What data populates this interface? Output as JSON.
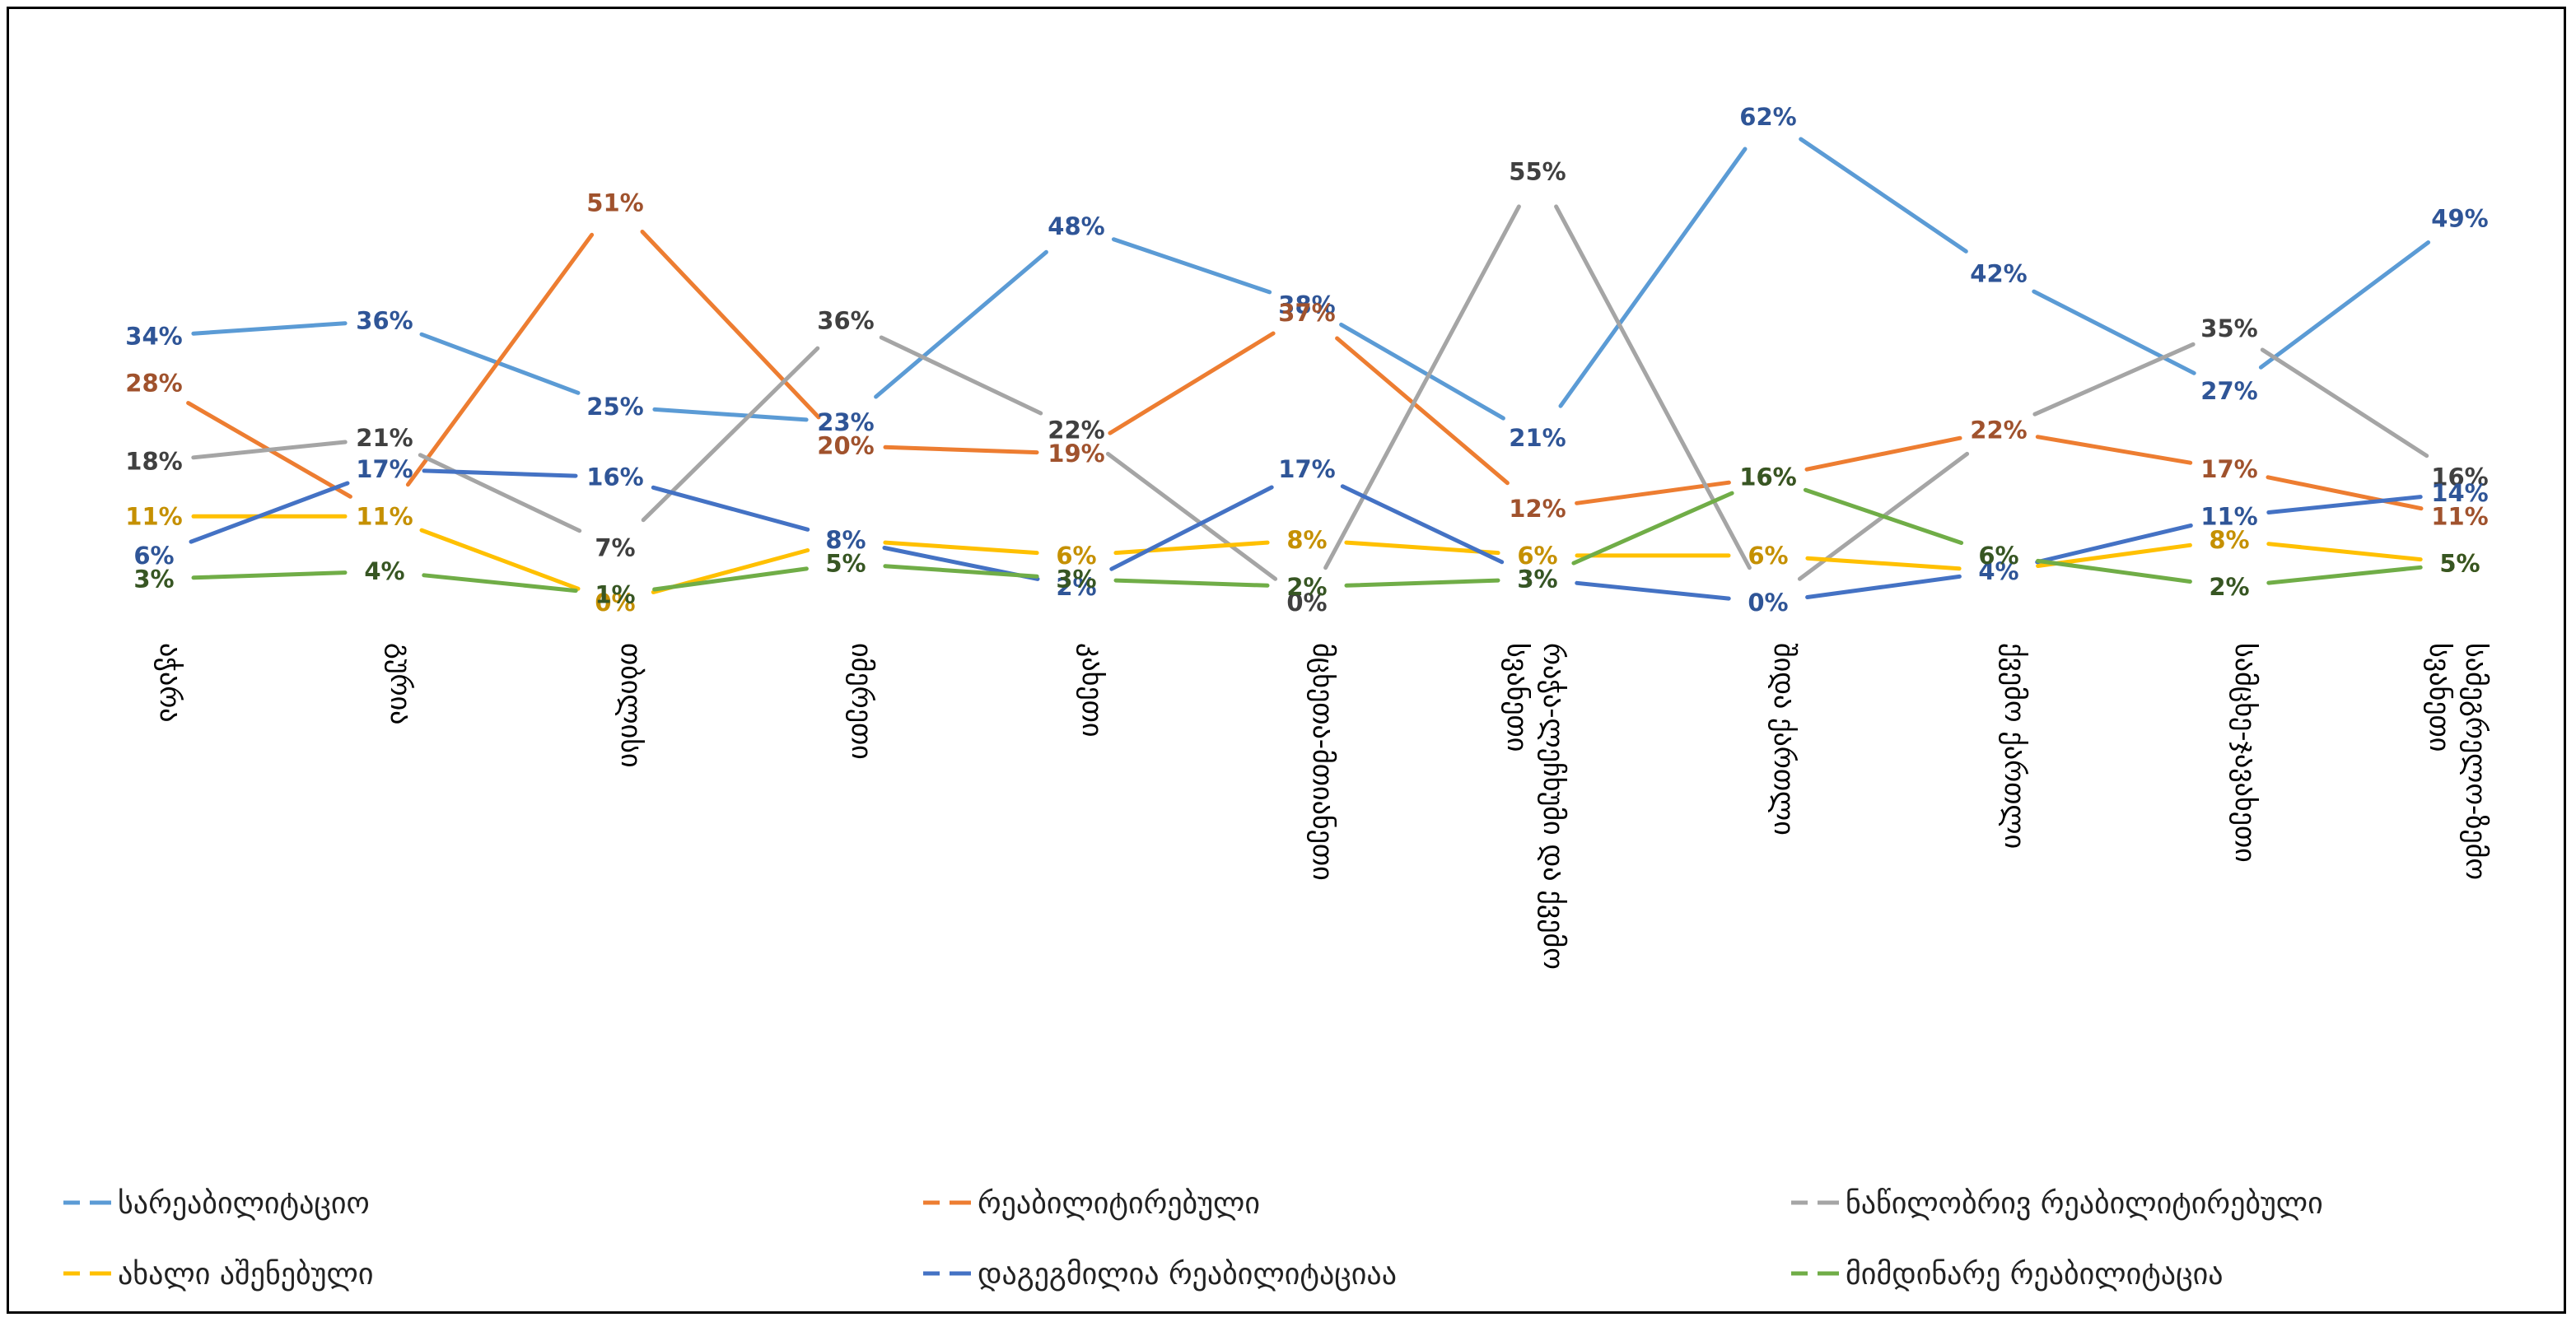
{
  "chart_data": {
    "type": "line",
    "categories": [
      [
        "აჭარა"
      ],
      [
        "გურია"
      ],
      [
        "თბილისი"
      ],
      [
        "იმერეთი"
      ],
      [
        "კახეთი"
      ],
      [
        "მცხეთა-მთიანეთი"
      ],
      [
        "რაჭა-ლეჩხუმი და ქვემო",
        "სვანეთი"
      ],
      [
        "შიდა ქართლი"
      ],
      [
        "ქვემო ქართლი"
      ],
      [
        "სამცხე-ჯავახეთი"
      ],
      [
        "სამეგრელო-ზემო",
        "სვანეთი"
      ]
    ],
    "series": [
      {
        "name": "სარეაბილიტაციო",
        "color": "#5b9bd5",
        "label_color": "#2f5597",
        "values": [
          34,
          36,
          25,
          23,
          48,
          38,
          21,
          62,
          42,
          27,
          49
        ],
        "labels": [
          "34%",
          "36%",
          "25%",
          "23%",
          "48%",
          "38%",
          "21%",
          "62%",
          "42%",
          "27%",
          "49%"
        ]
      },
      {
        "name": "რეაბილიტირებული",
        "color": "#ed7d31",
        "label_color": "#a0522d",
        "values": [
          28,
          11,
          51,
          20,
          19,
          37,
          12,
          16,
          22,
          17,
          11
        ],
        "labels": [
          "28%",
          "",
          "51%",
          "20%",
          "19%",
          "37%",
          "12%",
          "16%",
          "22%",
          "17%",
          "11%"
        ]
      },
      {
        "name": "ნაწილობრივ რეაბილიტირებული",
        "color": "#a5a5a5",
        "label_color": "#404040",
        "values": [
          18,
          21,
          7,
          36,
          22,
          0,
          55,
          0,
          22,
          35,
          16
        ],
        "labels": [
          "18%",
          "21%",
          "7%",
          "36%",
          "22%",
          "0%",
          "55%",
          "",
          "",
          "35%",
          "16%"
        ]
      },
      {
        "name": "ახალი აშენებული",
        "color": "#ffc000",
        "label_color": "#c59000",
        "values": [
          11,
          11,
          0,
          8,
          6,
          8,
          6,
          6,
          4,
          8,
          5
        ],
        "labels": [
          "11%",
          "11%",
          "0%",
          "",
          "6%",
          "8%",
          "6%",
          "6%",
          "",
          "8%",
          "5%"
        ]
      },
      {
        "name": "დაგეგმილია რეაბილიტაციაა",
        "color": "#4472c4",
        "label_color": "#2f5597",
        "values": [
          6,
          17,
          16,
          8,
          2,
          17,
          3,
          0,
          4,
          11,
          14
        ],
        "labels": [
          "6%",
          "17%",
          "16%",
          "8%",
          "2%",
          "17%",
          "3%",
          "0%",
          "4%",
          "11%",
          "14%"
        ]
      },
      {
        "name": "მიმდინარე რეაბილიტაცია",
        "color": "#70ad47",
        "label_color": "#375623",
        "values": [
          3,
          4,
          1,
          5,
          3,
          2,
          3,
          16,
          6,
          2,
          5
        ],
        "labels": [
          "3%",
          "4%",
          "1%",
          "5%",
          "3%",
          "2%",
          "3%",
          "16%",
          "6%",
          "2%",
          "5%"
        ]
      }
    ],
    "ylim": [
      0,
      62
    ],
    "legend": "bottom",
    "grid": false
  }
}
